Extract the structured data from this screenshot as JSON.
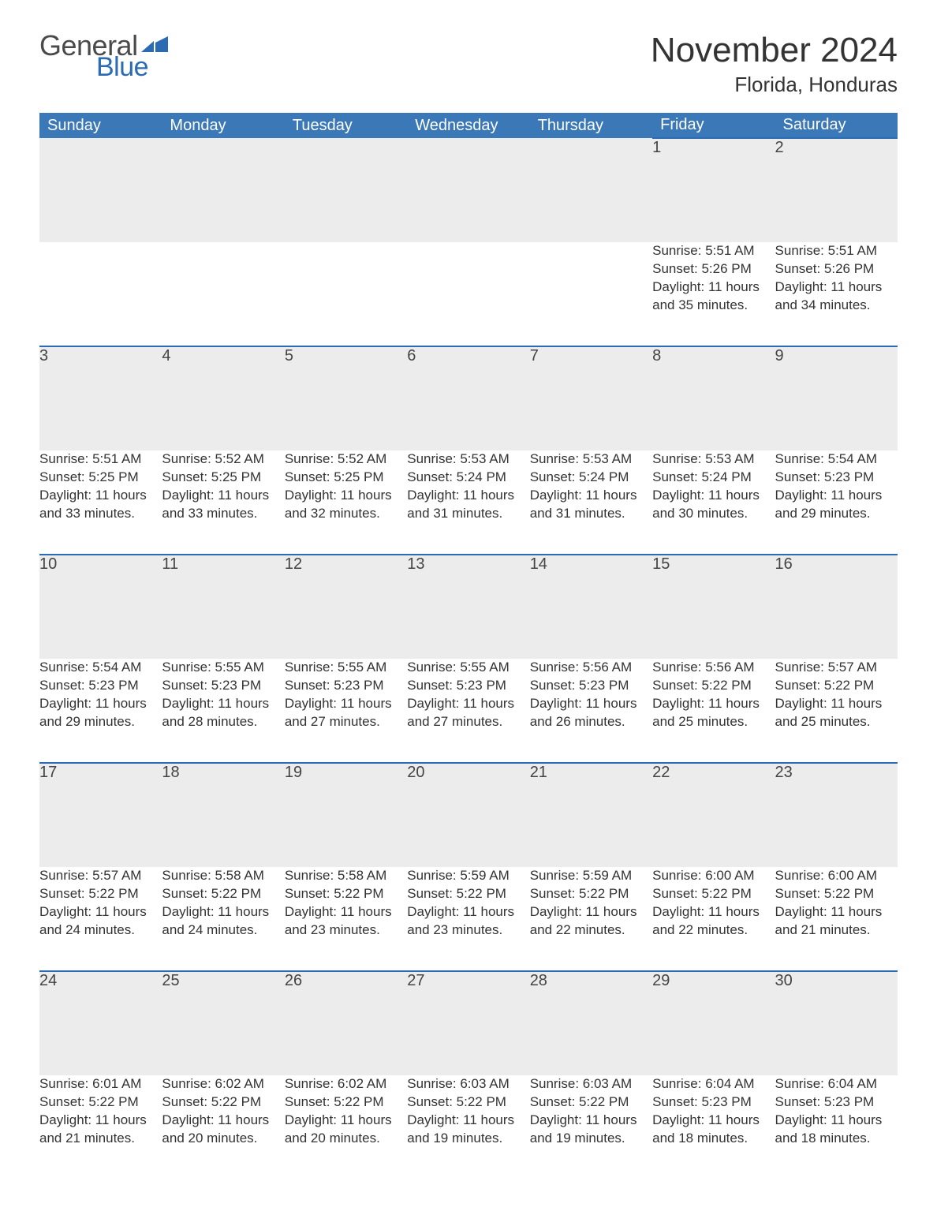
{
  "logo": {
    "word1": "General",
    "word2": "Blue",
    "brand_color": "#2a6bb3"
  },
  "title": "November 2024",
  "subtitle": "Florida, Honduras",
  "header_bg": "#3a78b7",
  "daynum_bg": "#ececec",
  "daynum_border": "#2a6bb3",
  "day_headers": [
    "Sunday",
    "Monday",
    "Tuesday",
    "Wednesday",
    "Thursday",
    "Friday",
    "Saturday"
  ],
  "weeks": [
    {
      "nums": [
        "",
        "",
        "",
        "",
        "",
        "1",
        "2"
      ],
      "cells": [
        null,
        null,
        null,
        null,
        null,
        {
          "sunrise": "5:51 AM",
          "sunset": "5:26 PM",
          "dl1": "11 hours",
          "dl2": "and 35 minutes."
        },
        {
          "sunrise": "5:51 AM",
          "sunset": "5:26 PM",
          "dl1": "11 hours",
          "dl2": "and 34 minutes."
        }
      ]
    },
    {
      "nums": [
        "3",
        "4",
        "5",
        "6",
        "7",
        "8",
        "9"
      ],
      "cells": [
        {
          "sunrise": "5:51 AM",
          "sunset": "5:25 PM",
          "dl1": "11 hours",
          "dl2": "and 33 minutes."
        },
        {
          "sunrise": "5:52 AM",
          "sunset": "5:25 PM",
          "dl1": "11 hours",
          "dl2": "and 33 minutes."
        },
        {
          "sunrise": "5:52 AM",
          "sunset": "5:25 PM",
          "dl1": "11 hours",
          "dl2": "and 32 minutes."
        },
        {
          "sunrise": "5:53 AM",
          "sunset": "5:24 PM",
          "dl1": "11 hours",
          "dl2": "and 31 minutes."
        },
        {
          "sunrise": "5:53 AM",
          "sunset": "5:24 PM",
          "dl1": "11 hours",
          "dl2": "and 31 minutes."
        },
        {
          "sunrise": "5:53 AM",
          "sunset": "5:24 PM",
          "dl1": "11 hours",
          "dl2": "and 30 minutes."
        },
        {
          "sunrise": "5:54 AM",
          "sunset": "5:23 PM",
          "dl1": "11 hours",
          "dl2": "and 29 minutes."
        }
      ]
    },
    {
      "nums": [
        "10",
        "11",
        "12",
        "13",
        "14",
        "15",
        "16"
      ],
      "cells": [
        {
          "sunrise": "5:54 AM",
          "sunset": "5:23 PM",
          "dl1": "11 hours",
          "dl2": "and 29 minutes."
        },
        {
          "sunrise": "5:55 AM",
          "sunset": "5:23 PM",
          "dl1": "11 hours",
          "dl2": "and 28 minutes."
        },
        {
          "sunrise": "5:55 AM",
          "sunset": "5:23 PM",
          "dl1": "11 hours",
          "dl2": "and 27 minutes."
        },
        {
          "sunrise": "5:55 AM",
          "sunset": "5:23 PM",
          "dl1": "11 hours",
          "dl2": "and 27 minutes."
        },
        {
          "sunrise": "5:56 AM",
          "sunset": "5:23 PM",
          "dl1": "11 hours",
          "dl2": "and 26 minutes."
        },
        {
          "sunrise": "5:56 AM",
          "sunset": "5:22 PM",
          "dl1": "11 hours",
          "dl2": "and 25 minutes."
        },
        {
          "sunrise": "5:57 AM",
          "sunset": "5:22 PM",
          "dl1": "11 hours",
          "dl2": "and 25 minutes."
        }
      ]
    },
    {
      "nums": [
        "17",
        "18",
        "19",
        "20",
        "21",
        "22",
        "23"
      ],
      "cells": [
        {
          "sunrise": "5:57 AM",
          "sunset": "5:22 PM",
          "dl1": "11 hours",
          "dl2": "and 24 minutes."
        },
        {
          "sunrise": "5:58 AM",
          "sunset": "5:22 PM",
          "dl1": "11 hours",
          "dl2": "and 24 minutes."
        },
        {
          "sunrise": "5:58 AM",
          "sunset": "5:22 PM",
          "dl1": "11 hours",
          "dl2": "and 23 minutes."
        },
        {
          "sunrise": "5:59 AM",
          "sunset": "5:22 PM",
          "dl1": "11 hours",
          "dl2": "and 23 minutes."
        },
        {
          "sunrise": "5:59 AM",
          "sunset": "5:22 PM",
          "dl1": "11 hours",
          "dl2": "and 22 minutes."
        },
        {
          "sunrise": "6:00 AM",
          "sunset": "5:22 PM",
          "dl1": "11 hours",
          "dl2": "and 22 minutes."
        },
        {
          "sunrise": "6:00 AM",
          "sunset": "5:22 PM",
          "dl1": "11 hours",
          "dl2": "and 21 minutes."
        }
      ]
    },
    {
      "nums": [
        "24",
        "25",
        "26",
        "27",
        "28",
        "29",
        "30"
      ],
      "cells": [
        {
          "sunrise": "6:01 AM",
          "sunset": "5:22 PM",
          "dl1": "11 hours",
          "dl2": "and 21 minutes."
        },
        {
          "sunrise": "6:02 AM",
          "sunset": "5:22 PM",
          "dl1": "11 hours",
          "dl2": "and 20 minutes."
        },
        {
          "sunrise": "6:02 AM",
          "sunset": "5:22 PM",
          "dl1": "11 hours",
          "dl2": "and 20 minutes."
        },
        {
          "sunrise": "6:03 AM",
          "sunset": "5:22 PM",
          "dl1": "11 hours",
          "dl2": "and 19 minutes."
        },
        {
          "sunrise": "6:03 AM",
          "sunset": "5:22 PM",
          "dl1": "11 hours",
          "dl2": "and 19 minutes."
        },
        {
          "sunrise": "6:04 AM",
          "sunset": "5:23 PM",
          "dl1": "11 hours",
          "dl2": "and 18 minutes."
        },
        {
          "sunrise": "6:04 AM",
          "sunset": "5:23 PM",
          "dl1": "11 hours",
          "dl2": "and 18 minutes."
        }
      ]
    }
  ],
  "labels": {
    "sunrise": "Sunrise: ",
    "sunset": "Sunset: ",
    "daylight": "Daylight: "
  }
}
